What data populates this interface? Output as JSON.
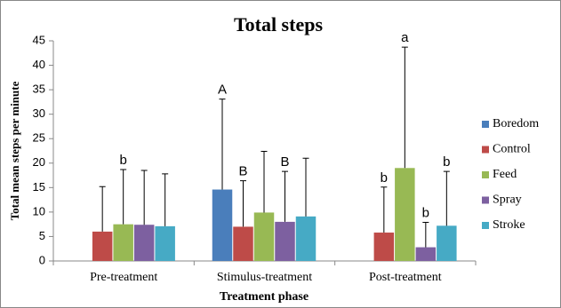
{
  "chart_data": {
    "type": "bar",
    "title": "Total steps",
    "x_label": "Treatment phase",
    "y_label": "Total mean steps per minute",
    "categories": [
      "Pre-treatment",
      "Stimulus-treatment",
      "Post-treatment"
    ],
    "series": [
      {
        "name": "Boredom",
        "color": "#4a7ebb",
        "values": [
          null,
          14.6,
          null
        ],
        "errors": [
          null,
          18.5,
          null
        ],
        "letters": [
          null,
          "A",
          null
        ]
      },
      {
        "name": "Control",
        "color": "#be4b48",
        "values": [
          6,
          7,
          5.8
        ],
        "errors": [
          9.2,
          9.4,
          9.3
        ],
        "letters": [
          null,
          "B",
          "b"
        ]
      },
      {
        "name": "Feed",
        "color": "#98b954",
        "values": [
          7.5,
          9.9,
          19
        ],
        "errors": [
          11.2,
          12.5,
          24.7
        ],
        "letters": [
          "b",
          null,
          "a"
        ]
      },
      {
        "name": "Spray",
        "color": "#7d60a0",
        "values": [
          7.4,
          8,
          2.8
        ],
        "errors": [
          11.1,
          10.3,
          5.1
        ],
        "letters": [
          null,
          "B",
          "b"
        ]
      },
      {
        "name": "Stroke",
        "color": "#46aac5",
        "values": [
          7.1,
          9.1,
          7.2
        ],
        "errors": [
          10.7,
          11.9,
          11.1
        ],
        "letters": [
          null,
          null,
          "b"
        ]
      }
    ],
    "ylim": [
      0,
      45
    ],
    "yticks": [
      0,
      5,
      10,
      15,
      20,
      25,
      30,
      35,
      40,
      45
    ],
    "legend": "right"
  }
}
